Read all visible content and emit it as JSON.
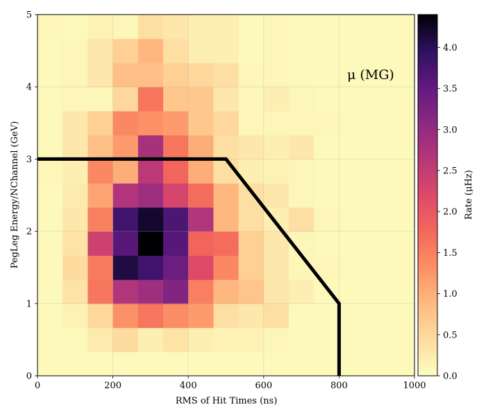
{
  "chart_data": {
    "type": "heatmap",
    "annotation": "μ (MG)",
    "xlabel": "RMS of Hit Times (ns)",
    "ylabel": "PegLeg Energy/NChannel (GeV)",
    "colorbar_label": "Rate (μHz)",
    "xlim": [
      0,
      1000
    ],
    "ylim": [
      0,
      5
    ],
    "x_ticks": [
      "0",
      "200",
      "400",
      "600",
      "800",
      "1000"
    ],
    "y_ticks": [
      "0",
      "1",
      "2",
      "3",
      "4",
      "5"
    ],
    "colorbar_ticks": [
      "0.0",
      "0.5",
      "1.0",
      "1.5",
      "2.0",
      "2.5",
      "3.0",
      "3.5",
      "4.0"
    ],
    "color_range": [
      0,
      4.4
    ],
    "colormap": "magma_r",
    "grid": true,
    "x_bin_edges": [
      0,
      66.7,
      133.3,
      200,
      266.7,
      333.3,
      400,
      466.7,
      533.3,
      600,
      666.7,
      733.3,
      800,
      866.7,
      933.3,
      1000
    ],
    "y_bin_edges": [
      0,
      0.333,
      0.667,
      1.0,
      1.333,
      1.667,
      2.0,
      2.333,
      2.667,
      3.0,
      3.333,
      3.667,
      4.0,
      4.333,
      4.667,
      5.0
    ],
    "z_rows_bottom_to_top": [
      [
        0.05,
        0.05,
        0.05,
        0.05,
        0.05,
        0.05,
        0.05,
        0.05,
        0.05,
        0.05,
        0.05,
        0.05,
        0.05,
        0.05,
        0.05
      ],
      [
        0.05,
        0.05,
        0.25,
        0.45,
        0.2,
        0.35,
        0.2,
        0.15,
        0.15,
        0.1,
        0.05,
        0.05,
        0.05,
        0.05,
        0.05
      ],
      [
        0.05,
        0.15,
        0.5,
        1.3,
        1.6,
        1.35,
        1.2,
        0.4,
        0.3,
        0.4,
        0.05,
        0.05,
        0.05,
        0.05,
        0.05
      ],
      [
        0.05,
        0.35,
        1.6,
        2.7,
        2.9,
        3.2,
        1.5,
        0.9,
        0.75,
        0.3,
        0.2,
        0.05,
        0.05,
        0.05,
        0.05
      ],
      [
        0.05,
        0.45,
        1.55,
        4.1,
        3.8,
        3.4,
        2.2,
        1.4,
        0.6,
        0.3,
        0.1,
        0.1,
        0.05,
        0.05,
        0.05
      ],
      [
        0.05,
        0.35,
        2.4,
        3.6,
        4.4,
        3.6,
        1.8,
        1.7,
        0.6,
        0.3,
        0.1,
        0.05,
        0.05,
        0.05,
        0.05
      ],
      [
        0.05,
        0.3,
        1.5,
        3.8,
        4.2,
        3.7,
        2.7,
        0.9,
        0.4,
        0.2,
        0.4,
        0.1,
        0.05,
        0.05,
        0.05
      ],
      [
        0.05,
        0.25,
        1.1,
        2.7,
        2.9,
        2.3,
        1.7,
        0.9,
        0.4,
        0.3,
        0.1,
        0.05,
        0.05,
        0.05,
        0.05
      ],
      [
        0.1,
        0.2,
        1.4,
        1.0,
        2.6,
        1.8,
        1.0,
        0.4,
        0.2,
        0.15,
        0.1,
        0.05,
        0.05,
        0.05,
        0.05
      ],
      [
        0.05,
        0.3,
        0.8,
        1.2,
        2.8,
        1.6,
        1.0,
        0.4,
        0.3,
        0.2,
        0.3,
        0.05,
        0.05,
        0.05,
        0.05
      ],
      [
        0.05,
        0.3,
        0.6,
        1.4,
        1.3,
        1.2,
        0.7,
        0.5,
        0.1,
        0.1,
        0.1,
        0.1,
        0.05,
        0.05,
        0.05
      ],
      [
        0.05,
        0.1,
        0.1,
        0.5,
        1.6,
        0.7,
        0.7,
        0.3,
        0.1,
        0.2,
        0.1,
        0.05,
        0.05,
        0.05,
        0.05
      ],
      [
        0.05,
        0.1,
        0.3,
        0.8,
        0.8,
        0.6,
        0.5,
        0.4,
        0.1,
        0.1,
        0.05,
        0.05,
        0.05,
        0.05,
        0.05
      ],
      [
        0.05,
        0.1,
        0.3,
        0.6,
        0.9,
        0.4,
        0.2,
        0.2,
        0.05,
        0.1,
        0.05,
        0.05,
        0.05,
        0.05,
        0.05
      ],
      [
        0.1,
        0.05,
        0.15,
        0.1,
        0.4,
        0.3,
        0.2,
        0.2,
        0.05,
        0.1,
        0.05,
        0.05,
        0.05,
        0.05,
        0.05
      ]
    ],
    "cut_line": {
      "x": [
        0,
        500,
        800,
        800
      ],
      "y": [
        3,
        3,
        1,
        0
      ],
      "color": "#000000"
    }
  }
}
